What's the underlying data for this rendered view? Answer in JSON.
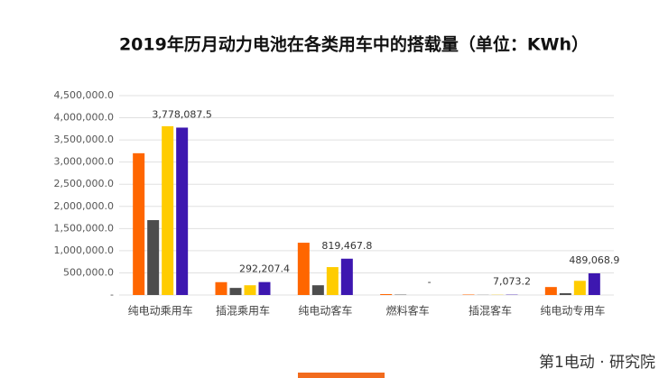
{
  "chart_data": {
    "type": "bar",
    "title": "2019年历月动力电池在各类用车中的搭载量（单位：KWh）",
    "categories": [
      "纯电动乘用车",
      "插混乘用车",
      "纯电动客车",
      "燃料客车",
      "插混客车",
      "纯电动专用车"
    ],
    "series": [
      {
        "color": "#ff6600",
        "values": [
          3200000,
          290000,
          1180000,
          20000,
          10000,
          180000
        ]
      },
      {
        "color": "#4d4d4d",
        "values": [
          1690000,
          160000,
          220000,
          8000,
          3000,
          40000
        ]
      },
      {
        "color": "#ffcc00",
        "values": [
          3810000,
          220000,
          630000,
          0,
          5000,
          320000
        ]
      },
      {
        "color": "#3d17b0",
        "values": [
          3778087.5,
          292207.4,
          819467.8,
          0,
          7073.2,
          489068.9
        ],
        "value_labels": [
          "3,778,087.5",
          "292,207.4",
          "819,467.8",
          "-",
          "7,073.2",
          "489,068.9"
        ]
      }
    ],
    "ylim": [
      0,
      4500000
    ],
    "yticks": [
      {
        "value": 0,
        "label": "-"
      },
      {
        "value": 500000,
        "label": "500,000.0"
      },
      {
        "value": 1000000,
        "label": "1,000,000.0"
      },
      {
        "value": 1500000,
        "label": "1,500,000.0"
      },
      {
        "value": 2000000,
        "label": "2,000,000.0"
      },
      {
        "value": 2500000,
        "label": "2,500,000.0"
      },
      {
        "value": 3000000,
        "label": "3,000,000.0"
      },
      {
        "value": 3500000,
        "label": "3,500,000.0"
      },
      {
        "value": 4000000,
        "label": "4,000,000.0"
      },
      {
        "value": 4500000,
        "label": "4,500,000.0"
      }
    ],
    "grid": true
  },
  "footer": "第1电动 · 研究院"
}
